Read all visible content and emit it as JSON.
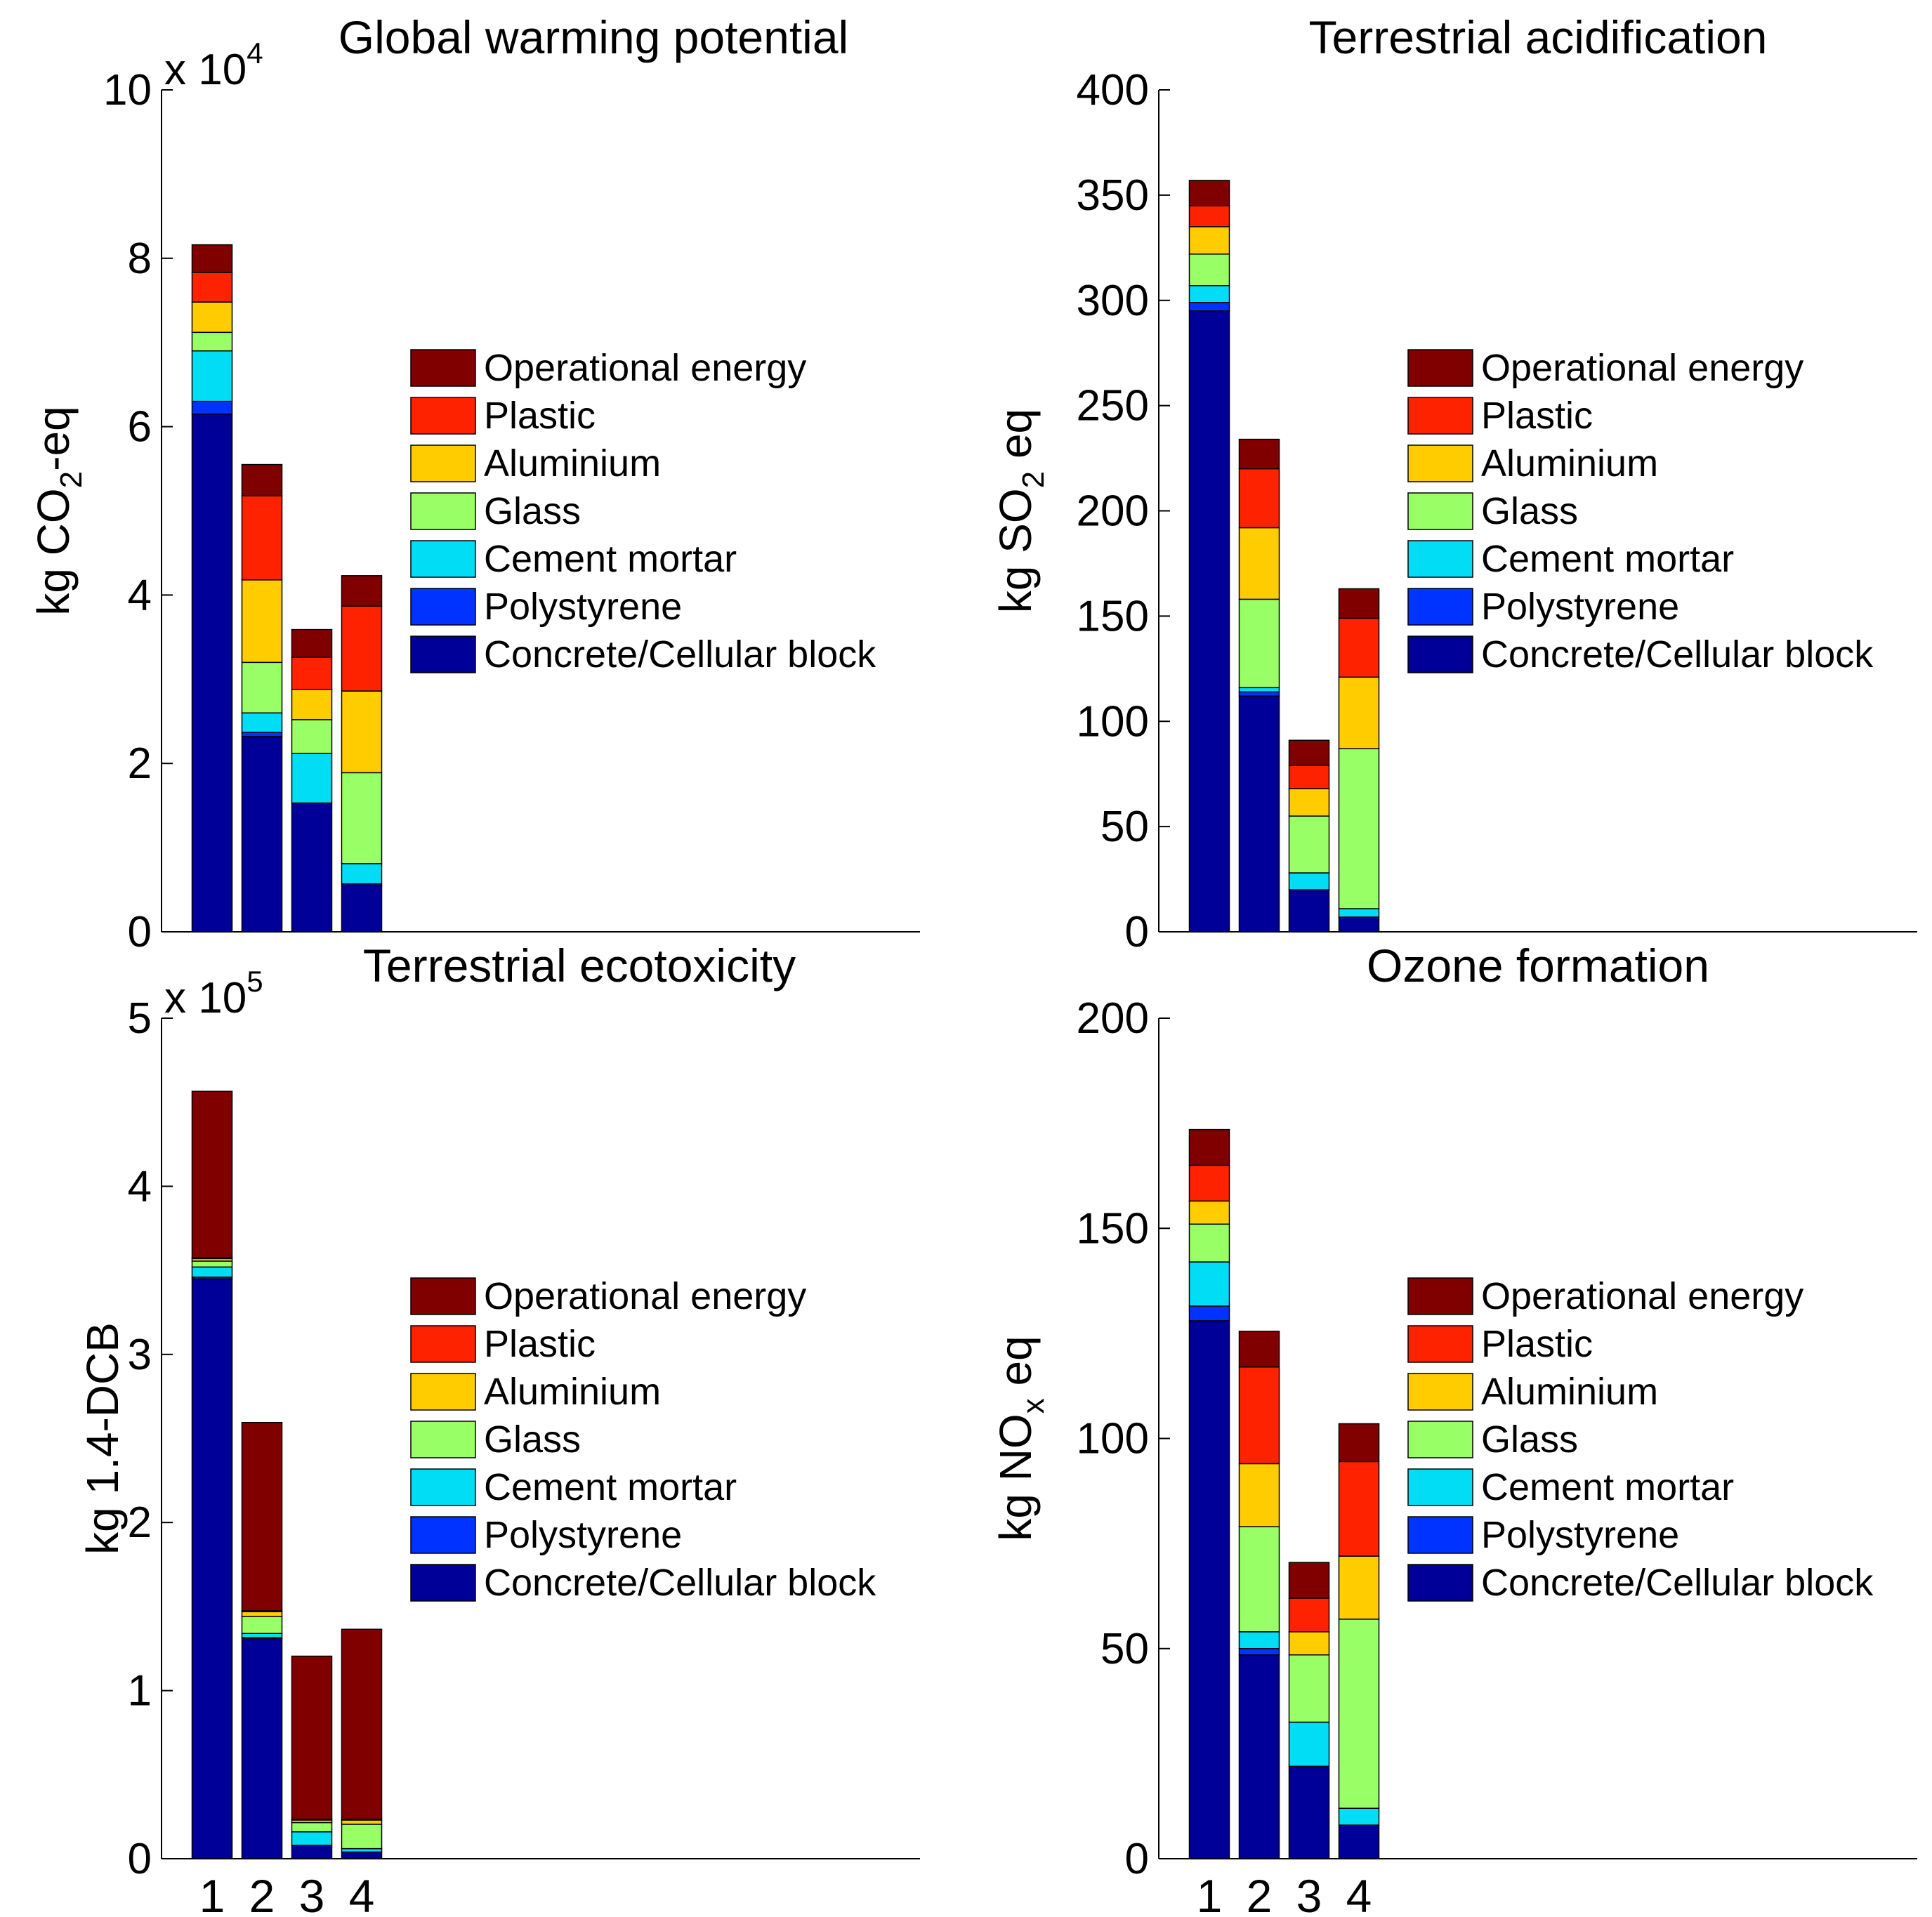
{
  "legend_colors": {
    "operational_energy": "#800000",
    "plastic": "#FF2200",
    "aluminium": "#FFCC00",
    "glass": "#99FF66",
    "cement_mortar": "#00DDF5",
    "polystyrene": "#0033FF",
    "concrete": "#000099"
  },
  "chart_data": [
    {
      "id": "gwp",
      "type": "stacked-bar",
      "title": "Global warming potential",
      "ylabel_prefix": "kg CO",
      "ylabel_sub": "2",
      "ylabel_suffix": "-eq",
      "scale_prefix": "x 10",
      "scale_exponent": "4",
      "ylim": [
        0,
        100000
      ],
      "ytick_values": [
        0,
        20000,
        40000,
        60000,
        80000,
        100000
      ],
      "ytick_labels": [
        "0",
        "2",
        "4",
        "6",
        "8",
        "10"
      ],
      "categories": [
        "1",
        "2",
        "3",
        "4"
      ],
      "show_xticks": false,
      "legend_position": "center-right",
      "series": [
        {
          "name": "Concrete/Cellular block",
          "values": [
            61500,
            23200,
            15300,
            5700
          ]
        },
        {
          "name": "Polystyrene",
          "values": [
            1500,
            500,
            0,
            0
          ]
        },
        {
          "name": "Cement mortar",
          "values": [
            6000,
            2300,
            5900,
            2400
          ]
        },
        {
          "name": "Glass",
          "values": [
            2200,
            6000,
            4000,
            10800
          ]
        },
        {
          "name": "Aluminium",
          "values": [
            3600,
            9800,
            3600,
            9700
          ]
        },
        {
          "name": "Plastic",
          "values": [
            3500,
            10000,
            3800,
            10100
          ]
        },
        {
          "name": "Operational energy",
          "values": [
            3300,
            3700,
            3300,
            3600
          ]
        }
      ]
    },
    {
      "id": "ta",
      "type": "stacked-bar",
      "title": "Terrestrial acidification",
      "ylabel_prefix": "kg SO",
      "ylabel_sub": "2",
      "ylabel_suffix": " eq",
      "scale_prefix": "",
      "scale_exponent": "",
      "ylim": [
        0,
        400
      ],
      "ytick_values": [
        0,
        50,
        100,
        150,
        200,
        250,
        300,
        350,
        400
      ],
      "ytick_labels": [
        "0",
        "50",
        "100",
        "150",
        "200",
        "250",
        "300",
        "350",
        "400"
      ],
      "categories": [
        "1",
        "2",
        "3",
        "4"
      ],
      "show_xticks": false,
      "legend_position": "center-right",
      "series": [
        {
          "name": "Concrete/Cellular block",
          "values": [
            295,
            112,
            20,
            7
          ]
        },
        {
          "name": "Polystyrene",
          "values": [
            4,
            2,
            0,
            0
          ]
        },
        {
          "name": "Cement mortar",
          "values": [
            8,
            2,
            8,
            4
          ]
        },
        {
          "name": "Glass",
          "values": [
            15,
            42,
            27,
            76
          ]
        },
        {
          "name": "Aluminium",
          "values": [
            13,
            34,
            13,
            34
          ]
        },
        {
          "name": "Plastic",
          "values": [
            10,
            28,
            11,
            28
          ]
        },
        {
          "name": "Operational energy",
          "values": [
            12,
            14,
            12,
            14
          ]
        }
      ]
    },
    {
      "id": "te",
      "type": "stacked-bar",
      "title": "Terrestrial ecotoxicity",
      "ylabel_prefix": "kg  1.4-DCB",
      "ylabel_sub": "",
      "ylabel_suffix": "",
      "scale_prefix": "x 10",
      "scale_exponent": "5",
      "ylim": [
        0,
        500000
      ],
      "ytick_values": [
        0,
        100000,
        200000,
        300000,
        400000,
        500000
      ],
      "ytick_labels": [
        "0",
        "1",
        "2",
        "3",
        "4",
        "5"
      ],
      "categories": [
        "1",
        "2",
        "3",
        "4"
      ],
      "show_xticks": true,
      "legend_position": "center-right",
      "series": [
        {
          "name": "Concrete/Cellular block",
          "values": [
            345000,
            131000,
            8000,
            4000
          ]
        },
        {
          "name": "Polystyrene",
          "values": [
            1000,
            500,
            0,
            0
          ]
        },
        {
          "name": "Cement mortar",
          "values": [
            6000,
            2500,
            8000,
            2000
          ]
        },
        {
          "name": "Glass",
          "values": [
            3500,
            10000,
            5500,
            14500
          ]
        },
        {
          "name": "Aluminium",
          "values": [
            1500,
            3000,
            1500,
            2500
          ]
        },
        {
          "name": "Plastic",
          "values": [
            500,
            500,
            500,
            500
          ]
        },
        {
          "name": "Operational energy",
          "values": [
            99000,
            112000,
            97000,
            113000
          ]
        }
      ]
    },
    {
      "id": "of",
      "type": "stacked-bar",
      "title": "Ozone formation",
      "ylabel_prefix": "kg NO",
      "ylabel_sub": "x",
      "ylabel_suffix": " eq",
      "scale_prefix": "",
      "scale_exponent": "",
      "ylim": [
        0,
        200
      ],
      "ytick_values": [
        0,
        50,
        100,
        150,
        200
      ],
      "ytick_labels": [
        "0",
        "50",
        "100",
        "150",
        "200"
      ],
      "categories": [
        "1",
        "2",
        "3",
        "4"
      ],
      "show_xticks": true,
      "legend_position": "center-right",
      "series": [
        {
          "name": "Concrete/Cellular block",
          "values": [
            128,
            48.5,
            22,
            8
          ]
        },
        {
          "name": "Polystyrene",
          "values": [
            3.5,
            1.5,
            0,
            0
          ]
        },
        {
          "name": "Cement mortar",
          "values": [
            10.5,
            4,
            10.5,
            4
          ]
        },
        {
          "name": "Glass",
          "values": [
            9,
            25,
            16,
            45
          ]
        },
        {
          "name": "Aluminium",
          "values": [
            5.5,
            15,
            5.5,
            15
          ]
        },
        {
          "name": "Plastic",
          "values": [
            8.5,
            23,
            8,
            22.5
          ]
        },
        {
          "name": "Operational energy",
          "values": [
            8.5,
            8.5,
            8.5,
            9
          ]
        }
      ]
    }
  ]
}
